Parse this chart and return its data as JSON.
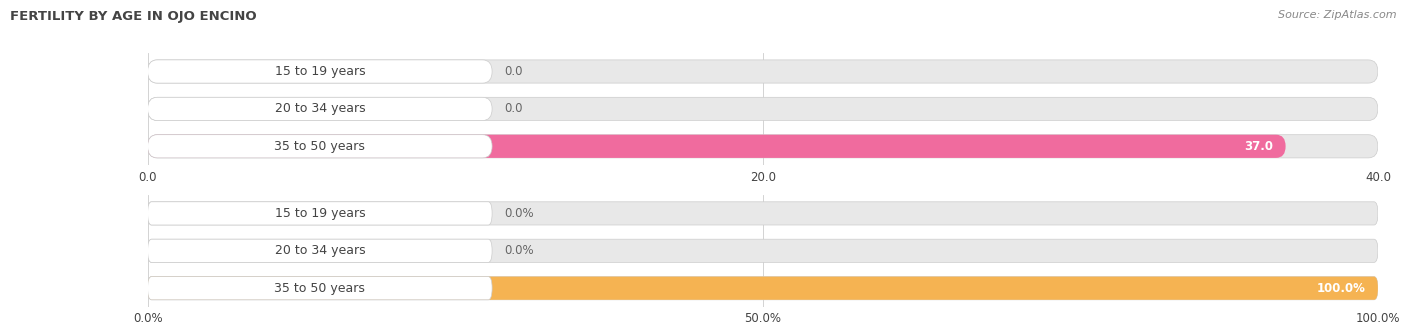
{
  "title": "FERTILITY BY AGE IN OJO ENCINO",
  "source": "Source: ZipAtlas.com",
  "chart1": {
    "categories": [
      "15 to 19 years",
      "20 to 34 years",
      "35 to 50 years"
    ],
    "values": [
      0.0,
      0.0,
      37.0
    ],
    "xlim": [
      0,
      40
    ],
    "xticks": [
      0.0,
      20.0,
      40.0
    ],
    "xtick_labels": [
      "0.0",
      "20.0",
      "40.0"
    ],
    "bar_color": "#f06b9e",
    "label_bg": "#ffffff",
    "track_color": "#e8e8e8"
  },
  "chart2": {
    "categories": [
      "15 to 19 years",
      "20 to 34 years",
      "35 to 50 years"
    ],
    "values": [
      0.0,
      0.0,
      100.0
    ],
    "xlim": [
      0,
      100
    ],
    "xticks": [
      0.0,
      50.0,
      100.0
    ],
    "xtick_labels": [
      "0.0%",
      "50.0%",
      "100.0%"
    ],
    "bar_color": "#f5b352",
    "label_bg": "#ffffff",
    "track_color": "#e8e8e8"
  },
  "label_color": "#444444",
  "value_color_inside": "#ffffff",
  "value_color_outside": "#666666",
  "title_color": "#444444",
  "source_color": "#888888",
  "title_fontsize": 9.5,
  "label_fontsize": 9,
  "value_fontsize": 8.5,
  "tick_fontsize": 8.5
}
